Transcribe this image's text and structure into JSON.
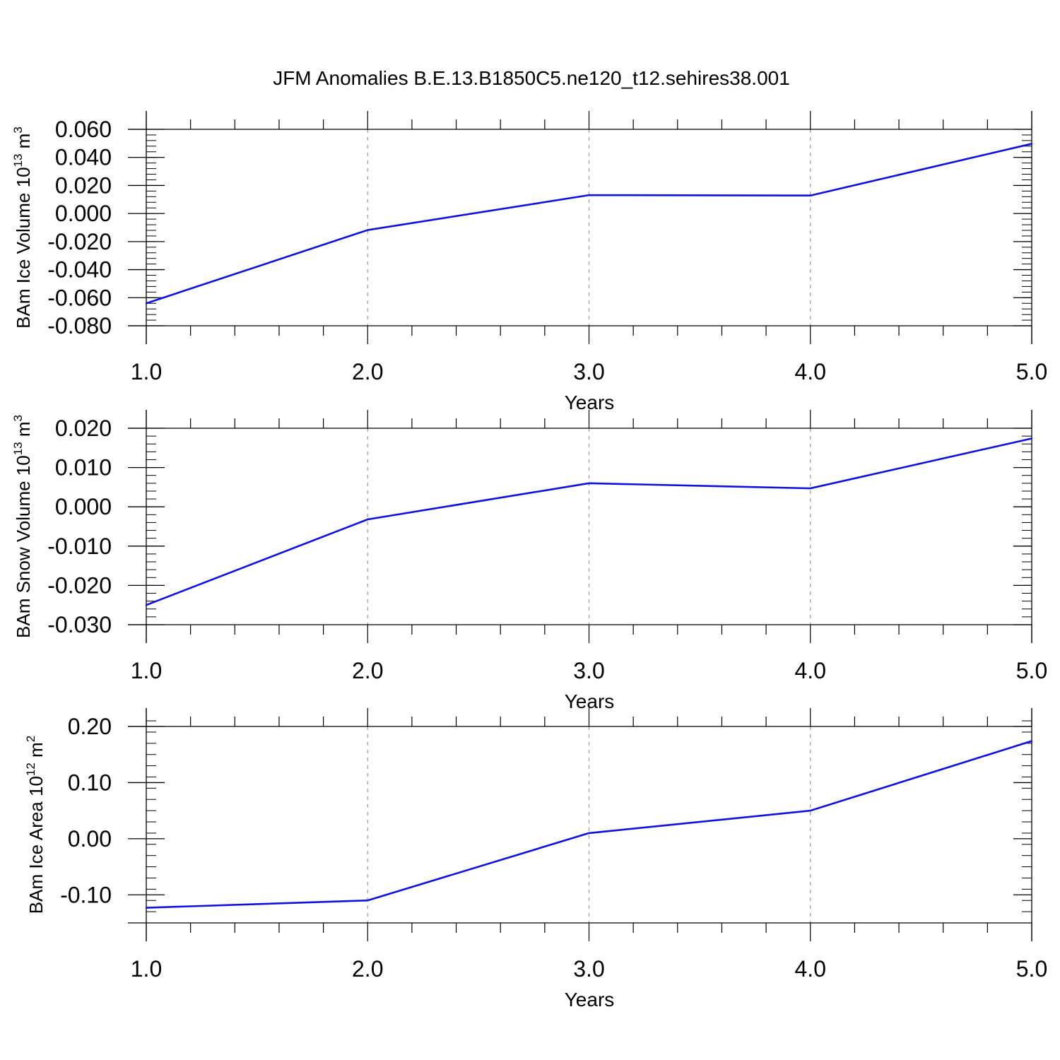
{
  "figure": {
    "title": "JFM Anomalies B.E.13.B1850C5.ne120_t12.sehires38.001"
  },
  "colors": {
    "line": "#1010e0",
    "axis": "#000000",
    "grid": "#999999"
  },
  "chart_data": [
    {
      "type": "line",
      "title": "",
      "xlabel": "Years",
      "ylabel": {
        "text": "BAm Ice Volume 10",
        "exp": "13",
        "unit": " m",
        "unit_exp": "3"
      },
      "x": [
        1.0,
        2.0,
        3.0,
        4.0,
        5.0
      ],
      "xlim": [
        1.0,
        5.0
      ],
      "xticks": [
        "1.0",
        "2.0",
        "3.0",
        "4.0",
        "5.0"
      ],
      "ylim": [
        -0.08,
        0.06
      ],
      "yticks": [
        {
          "value": 0.06,
          "label": "0.060"
        },
        {
          "value": 0.04,
          "label": "0.040"
        },
        {
          "value": 0.02,
          "label": "0.020"
        },
        {
          "value": 0.0,
          "label": "0.000"
        },
        {
          "value": -0.02,
          "label": "-0.020"
        },
        {
          "value": -0.04,
          "label": "-0.040"
        },
        {
          "value": -0.06,
          "label": "-0.060"
        },
        {
          "value": -0.08,
          "label": "-0.080"
        }
      ],
      "yminor_step": 0.004,
      "series": [
        {
          "name": "BAm Ice Volume",
          "values": [
            -0.064,
            -0.0118,
            0.0131,
            0.0128,
            0.0497
          ]
        }
      ],
      "grid": "vertical dashed at major x ticks"
    },
    {
      "type": "line",
      "title": "",
      "xlabel": "Years",
      "ylabel": {
        "text": "BAm Snow Volume 10",
        "exp": "13",
        "unit": " m",
        "unit_exp": "3"
      },
      "x": [
        1.0,
        2.0,
        3.0,
        4.0,
        5.0
      ],
      "xlim": [
        1.0,
        5.0
      ],
      "xticks": [
        "1.0",
        "2.0",
        "3.0",
        "4.0",
        "5.0"
      ],
      "ylim": [
        -0.03,
        0.02
      ],
      "yticks": [
        {
          "value": 0.02,
          "label": "0.020"
        },
        {
          "value": 0.01,
          "label": "0.010"
        },
        {
          "value": 0.0,
          "label": "0.000"
        },
        {
          "value": -0.01,
          "label": "-0.010"
        },
        {
          "value": -0.02,
          "label": "-0.020"
        },
        {
          "value": -0.03,
          "label": "-0.030"
        }
      ],
      "yminor_step": 0.002,
      "series": [
        {
          "name": "BAm Snow Volume",
          "values": [
            -0.025,
            -0.0032,
            0.006,
            0.0047,
            0.0174
          ]
        }
      ],
      "grid": "vertical dashed at major x ticks"
    },
    {
      "type": "line",
      "title": "",
      "xlabel": "Years",
      "ylabel": {
        "text": "BAm Ice Area 10",
        "exp": "12",
        "unit": " m",
        "unit_exp": "2"
      },
      "x": [
        1.0,
        2.0,
        3.0,
        4.0,
        5.0
      ],
      "xlim": [
        1.0,
        5.0
      ],
      "xticks": [
        "1.0",
        "2.0",
        "3.0",
        "4.0",
        "5.0"
      ],
      "ylim": [
        -0.15,
        0.2
      ],
      "yticks": [
        {
          "value": 0.2,
          "label": "0.20"
        },
        {
          "value": 0.1,
          "label": "0.10"
        },
        {
          "value": 0.0,
          "label": "0.00"
        },
        {
          "value": -0.1,
          "label": "-0.10"
        }
      ],
      "yminor_step": 0.02,
      "series": [
        {
          "name": "BAm Ice Area",
          "values": [
            -0.123,
            -0.11,
            0.01,
            0.05,
            0.174
          ]
        }
      ],
      "grid": "vertical dashed at major x ticks"
    }
  ]
}
